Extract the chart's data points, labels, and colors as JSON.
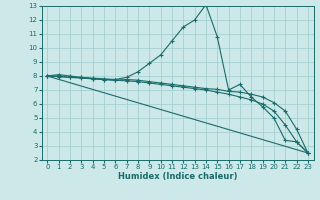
{
  "xlabel": "Humidex (Indice chaleur)",
  "bg_color": "#cce8e8",
  "line_color": "#1a6b6b",
  "grid_color": "#a0cccc",
  "xlim": [
    -0.5,
    23.5
  ],
  "ylim": [
    2,
    13
  ],
  "yticks": [
    2,
    3,
    4,
    5,
    6,
    7,
    8,
    9,
    10,
    11,
    12,
    13
  ],
  "xticks": [
    0,
    1,
    2,
    3,
    4,
    5,
    6,
    7,
    8,
    9,
    10,
    11,
    12,
    13,
    14,
    15,
    16,
    17,
    18,
    19,
    20,
    21,
    22,
    23
  ],
  "line1_x": [
    0,
    1,
    2,
    3,
    4,
    5,
    6,
    7,
    8,
    9,
    10,
    11,
    12,
    13,
    14,
    15,
    16,
    17,
    18,
    19,
    20,
    21,
    22,
    23
  ],
  "line1_y": [
    8.0,
    8.1,
    8.0,
    7.9,
    7.85,
    7.8,
    7.75,
    7.9,
    8.3,
    8.9,
    9.5,
    10.5,
    11.5,
    12.0,
    13.1,
    10.8,
    7.0,
    7.4,
    6.5,
    5.8,
    5.0,
    3.4,
    3.3,
    2.5
  ],
  "line2_x": [
    0,
    1,
    2,
    3,
    4,
    5,
    6,
    7,
    8,
    9,
    10,
    11,
    12,
    13,
    14,
    15,
    16,
    17,
    18,
    19,
    20,
    21,
    22,
    23
  ],
  "line2_y": [
    8.0,
    8.0,
    7.9,
    7.9,
    7.8,
    7.75,
    7.7,
    7.75,
    7.7,
    7.6,
    7.5,
    7.4,
    7.3,
    7.2,
    7.1,
    7.05,
    6.9,
    6.85,
    6.7,
    6.5,
    6.1,
    5.5,
    4.2,
    2.5
  ],
  "line3_x": [
    0,
    23
  ],
  "line3_y": [
    8.0,
    2.5
  ],
  "line4_x": [
    0,
    1,
    2,
    3,
    4,
    5,
    6,
    7,
    8,
    9,
    10,
    11,
    12,
    13,
    14,
    15,
    16,
    17,
    18,
    19,
    20,
    21,
    22,
    23
  ],
  "line4_y": [
    8.0,
    7.95,
    7.9,
    7.85,
    7.8,
    7.75,
    7.7,
    7.65,
    7.6,
    7.5,
    7.4,
    7.3,
    7.2,
    7.1,
    7.0,
    6.85,
    6.7,
    6.5,
    6.3,
    6.0,
    5.5,
    4.5,
    3.3,
    2.5
  ]
}
